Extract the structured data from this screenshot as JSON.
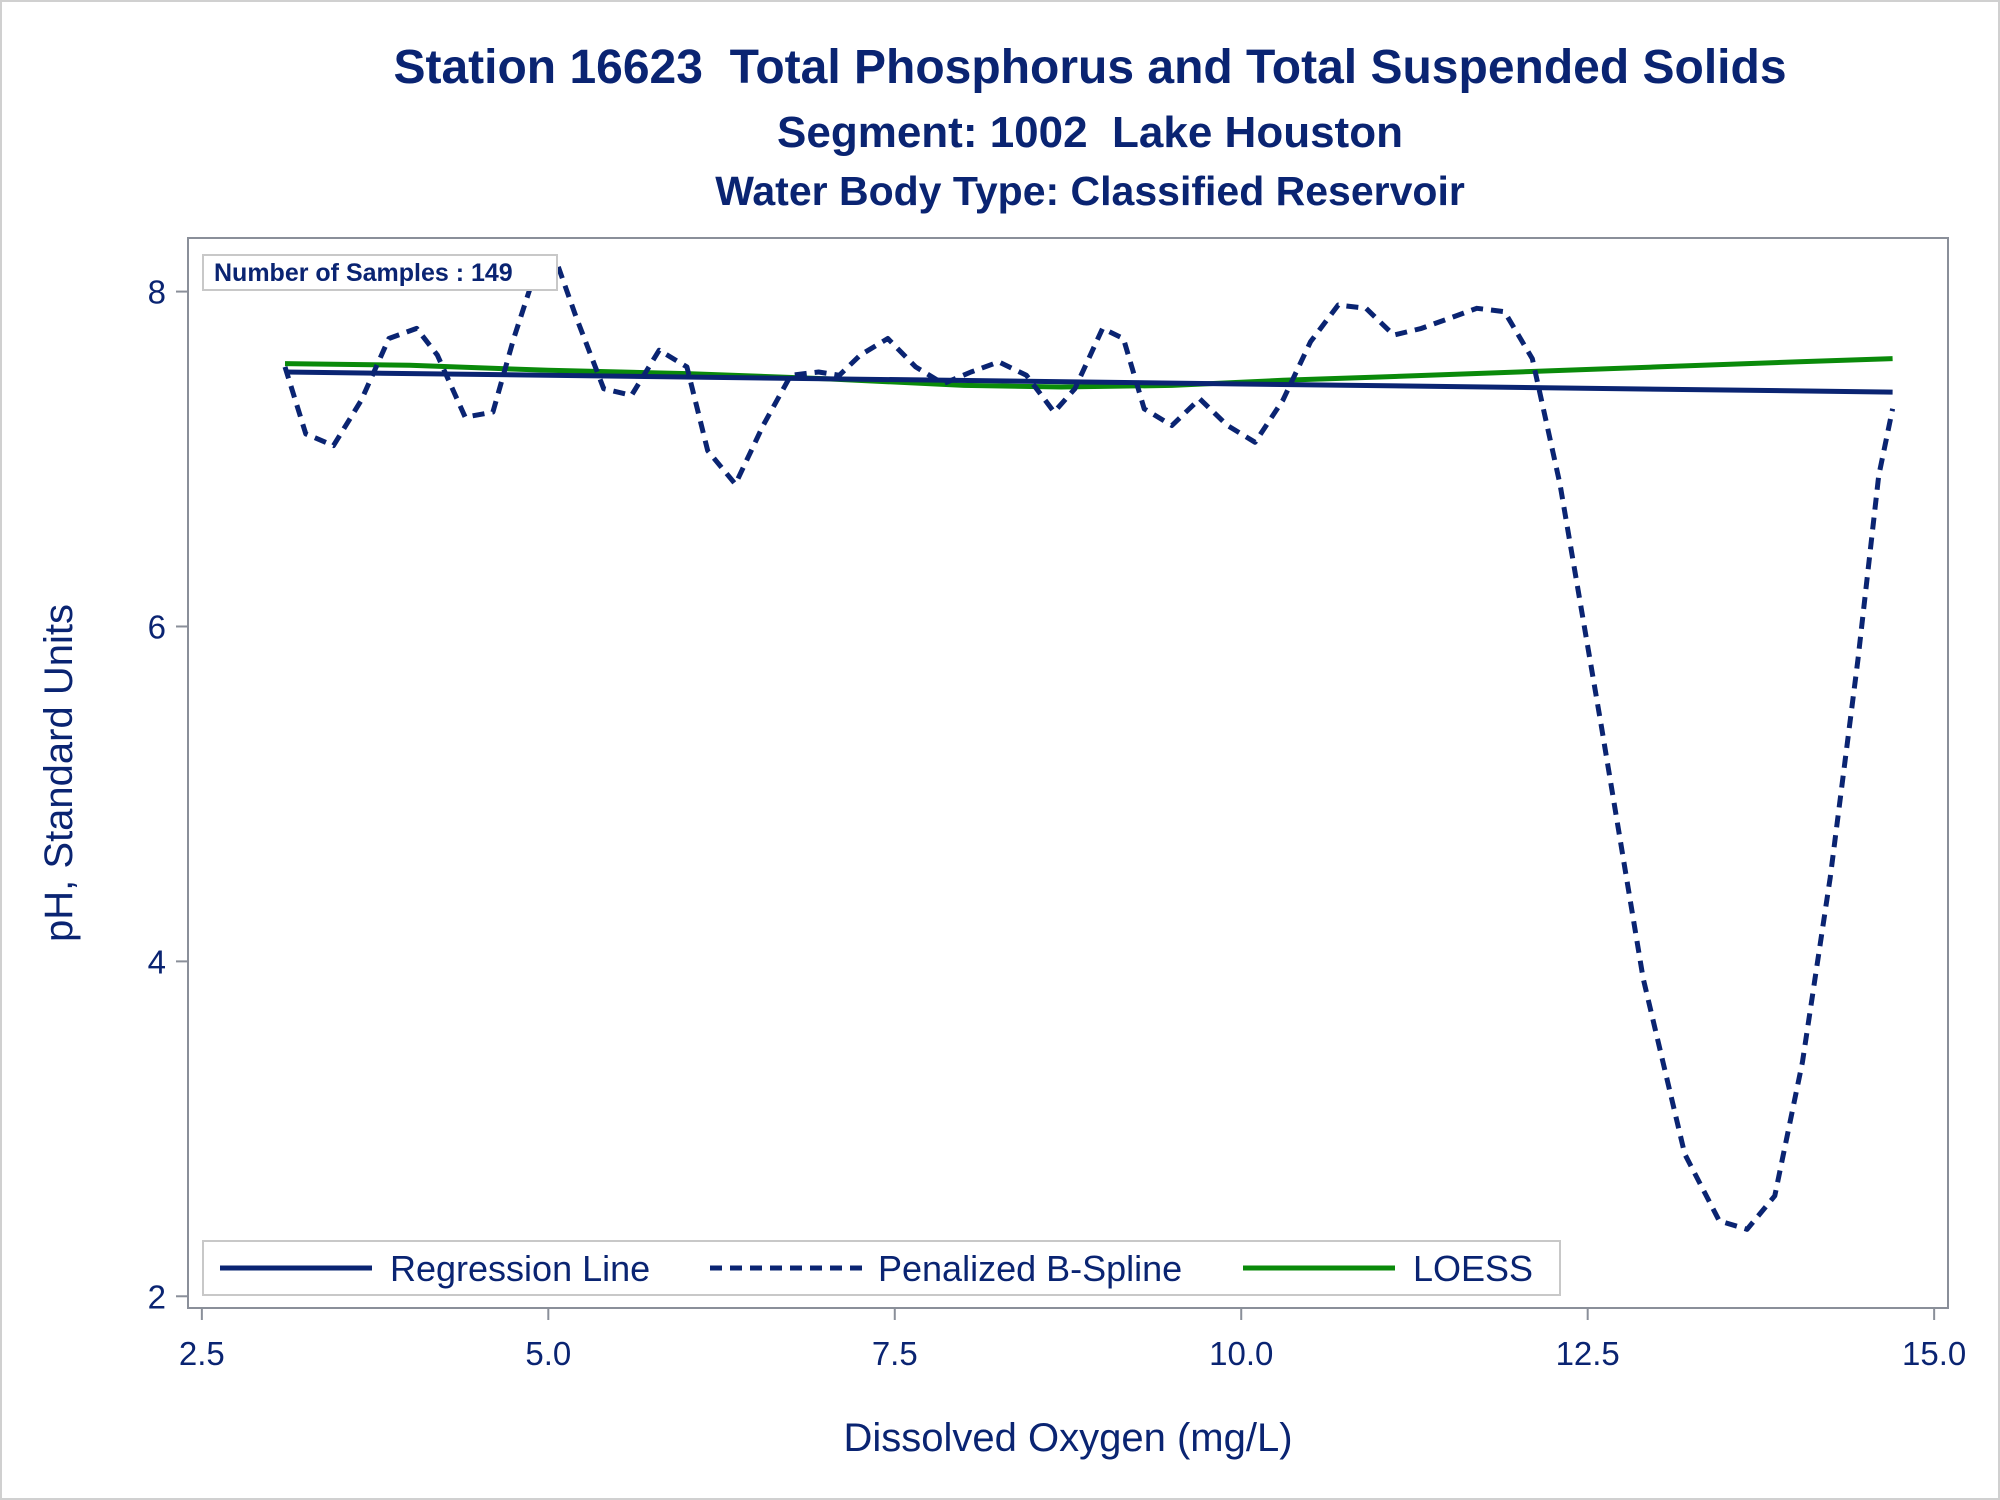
{
  "chart_data": {
    "type": "line",
    "title": "Station 16623  Total Phosphorus and Total Suspended Solids",
    "subtitle": "Segment: 1002  Lake Houston",
    "subtitle2": "Water Body Type: Classified Reservoir",
    "xlabel": "Dissolved Oxygen (mg/L)",
    "ylabel": "pH, Standard Units",
    "xlim": [
      2.4,
      15.1
    ],
    "ylim": [
      1.93,
      8.32
    ],
    "xticks": [
      2.5,
      5.0,
      7.5,
      10.0,
      12.5,
      15.0
    ],
    "xtick_labels": [
      "2.5",
      "5.0",
      "7.5",
      "10.0",
      "12.5",
      "15.0"
    ],
    "yticks": [
      2,
      4,
      6,
      8
    ],
    "ytick_labels": [
      "2",
      "4",
      "6",
      "8"
    ],
    "grid": false,
    "legend_position": "bottom-left",
    "inset_text": "Number of Samples : 149",
    "colors": {
      "text": "#0a2472",
      "regression": "#0a2472",
      "spline": "#0a2472",
      "loess": "#0a8a0a",
      "axis": "#8a8f99"
    },
    "series": [
      {
        "name": "Regression Line",
        "style": "solid",
        "color": "#0a2472",
        "x": [
          3.1,
          14.7
        ],
        "y": [
          7.52,
          7.4
        ]
      },
      {
        "name": "Penalized B-Spline",
        "style": "dashed",
        "color": "#0a2472",
        "x": [
          3.1,
          3.25,
          3.45,
          3.65,
          3.85,
          4.05,
          4.2,
          4.4,
          4.6,
          4.75,
          4.9,
          5.05,
          5.2,
          5.4,
          5.6,
          5.8,
          6.0,
          6.15,
          6.35,
          6.55,
          6.75,
          6.95,
          7.1,
          7.25,
          7.45,
          7.65,
          7.85,
          8.05,
          8.25,
          8.45,
          8.65,
          8.8,
          9.0,
          9.15,
          9.3,
          9.5,
          9.7,
          9.9,
          10.1,
          10.3,
          10.5,
          10.7,
          10.9,
          11.1,
          11.3,
          11.5,
          11.7,
          11.9,
          12.1,
          12.3,
          12.6,
          12.9,
          13.2,
          13.45,
          13.65,
          13.85,
          14.05,
          14.25,
          14.45,
          14.6,
          14.7
        ],
        "y": [
          7.55,
          7.15,
          7.08,
          7.35,
          7.72,
          7.78,
          7.62,
          7.25,
          7.28,
          7.72,
          8.1,
          8.2,
          7.85,
          7.42,
          7.38,
          7.65,
          7.55,
          7.05,
          6.85,
          7.2,
          7.5,
          7.52,
          7.5,
          7.62,
          7.72,
          7.55,
          7.45,
          7.52,
          7.58,
          7.5,
          7.28,
          7.42,
          7.78,
          7.72,
          7.3,
          7.2,
          7.36,
          7.2,
          7.1,
          7.35,
          7.7,
          7.92,
          7.9,
          7.74,
          7.78,
          7.84,
          7.9,
          7.88,
          7.6,
          6.85,
          5.4,
          3.9,
          2.85,
          2.45,
          2.4,
          2.6,
          3.4,
          4.5,
          5.8,
          6.9,
          7.3
        ]
      },
      {
        "name": "LOESS",
        "style": "solid",
        "color": "#0a8a0a",
        "x": [
          3.1,
          4.0,
          5.0,
          6.0,
          7.0,
          8.0,
          8.7,
          9.5,
          10.3,
          11.0,
          12.0,
          13.0,
          14.0,
          14.7
        ],
        "y": [
          7.57,
          7.56,
          7.53,
          7.51,
          7.48,
          7.44,
          7.43,
          7.44,
          7.47,
          7.49,
          7.52,
          7.55,
          7.58,
          7.6
        ]
      }
    ]
  }
}
